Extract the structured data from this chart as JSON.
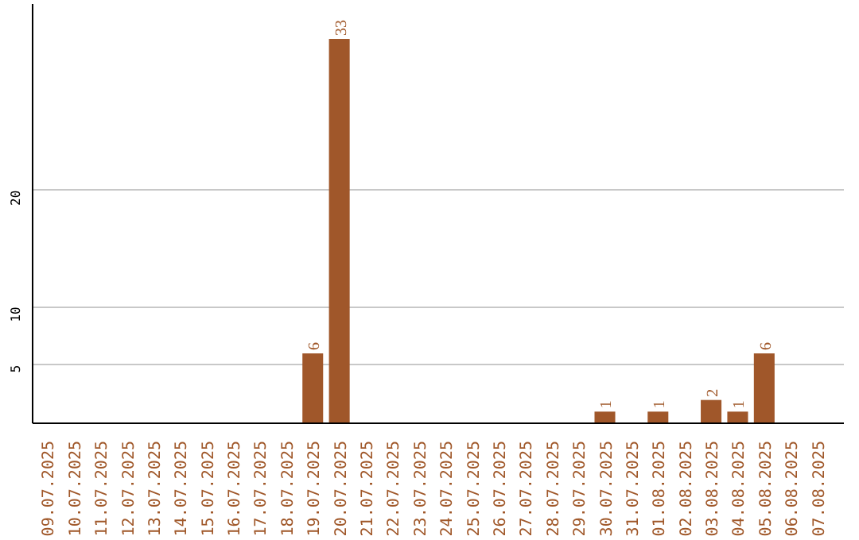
{
  "chart_data": {
    "type": "bar",
    "categories": [
      "09.07.2025",
      "10.07.2025",
      "11.07.2025",
      "12.07.2025",
      "13.07.2025",
      "14.07.2025",
      "15.07.2025",
      "16.07.2025",
      "17.07.2025",
      "18.07.2025",
      "19.07.2025",
      "20.07.2025",
      "21.07.2025",
      "22.07.2025",
      "23.07.2025",
      "24.07.2025",
      "25.07.2025",
      "26.07.2025",
      "27.07.2025",
      "28.07.2025",
      "29.07.2025",
      "30.07.2025",
      "31.07.2025",
      "01.08.2025",
      "02.08.2025",
      "03.08.2025",
      "04.08.2025",
      "05.08.2025",
      "06.08.2025",
      "07.08.2025"
    ],
    "values": [
      0,
      0,
      0,
      0,
      0,
      0,
      0,
      0,
      0,
      0,
      6,
      33,
      0,
      0,
      0,
      0,
      0,
      0,
      0,
      0,
      0,
      1,
      0,
      1,
      0,
      2,
      1,
      6,
      0,
      0
    ],
    "value_labels": [
      null,
      null,
      null,
      null,
      null,
      null,
      null,
      null,
      null,
      null,
      "6",
      "33",
      null,
      null,
      null,
      null,
      null,
      null,
      null,
      null,
      null,
      "1",
      null,
      "1",
      null,
      "2",
      "1",
      "6",
      null,
      null
    ],
    "color": "#a0572a",
    "ylim": [
      0,
      36
    ],
    "yticks": [
      5,
      10,
      20
    ],
    "grid": "y"
  }
}
